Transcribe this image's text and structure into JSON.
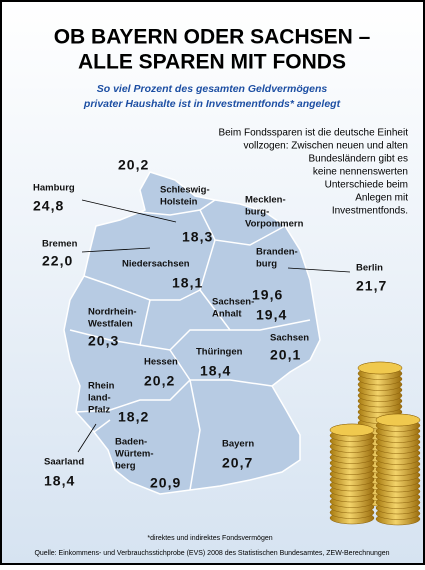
{
  "header": {
    "title": [
      "OB BAYERN ODER SACHSEN –",
      "ALLE SPAREN MIT FONDS"
    ],
    "subtitle": [
      "So viel Prozent des gesamten Geldvermögens",
      "privater Haushalte ist in Investmentfonds* angelegt"
    ]
  },
  "description": [
    "Beim Fondssparen ist die deutsche Einheit",
    "vollzogen: Zwischen neuen und alten",
    "Bundesländern gibt es",
    "keine nennenswerten",
    "Unterschiede beim",
    "Anlegen mit",
    "Investmentfonds."
  ],
  "map": {
    "regions": [
      {
        "name": [
          "Schleswig-",
          "Holstein"
        ],
        "value": "20,2"
      },
      {
        "name": [
          "Hamburg"
        ],
        "value": "24,8"
      },
      {
        "name": [
          "Bremen"
        ],
        "value": "22,0"
      },
      {
        "name": [
          "Niedersachsen"
        ],
        "value": "18,1"
      },
      {
        "name": [
          "Mecklen-",
          "burg-",
          "Vorpommern"
        ],
        "value": "18,3"
      },
      {
        "name": [
          "Branden-",
          "burg"
        ],
        "value": "19,6"
      },
      {
        "name": [
          "Berlin"
        ],
        "value": "21,7"
      },
      {
        "name": [
          "Sachsen-",
          "Anhalt"
        ],
        "value": "19,4"
      },
      {
        "name": [
          "Nordrhein-",
          "Westfalen"
        ],
        "value": "20,3"
      },
      {
        "name": [
          "Sachsen"
        ],
        "value": "20,1"
      },
      {
        "name": [
          "Thüringen"
        ],
        "value": "18,4"
      },
      {
        "name": [
          "Hessen"
        ],
        "value": "20,2"
      },
      {
        "name": [
          "Rhein",
          "land-",
          "Pfalz"
        ],
        "value": "18,2"
      },
      {
        "name": [
          "Saarland"
        ],
        "value": "18,4"
      },
      {
        "name": [
          "Baden-",
          "Würtem-",
          "berg"
        ],
        "value": "20,9"
      },
      {
        "name": [
          "Bayern"
        ],
        "value": "20,7"
      }
    ]
  },
  "footnote": "*direktes und indirektes Fondsvermögen",
  "source": "Quelle: Einkommens- und Verbrauchsstichprobe (EVS) 2008 des Statistischen Bundesamtes, ZEW-Berechnungen"
}
